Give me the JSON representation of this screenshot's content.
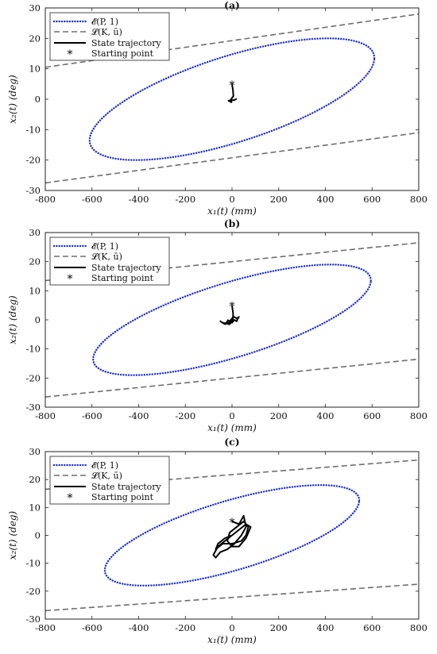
{
  "legend_labels": [
    "𝓔(P, 1)",
    "𝓛(K, ū)",
    "State trajectory",
    "Starting point"
  ],
  "xlabel": "x₁(t) (mm)",
  "ylabel": "x₂(t) (deg)",
  "colors": {
    "ellipse": "#1f2fd6",
    "line": "#6e6e6e",
    "trajectory": "#000000"
  },
  "chart_data": [
    {
      "type": "line",
      "title": "(a)",
      "xlabel": "x₁(t) (mm)",
      "ylabel": "x₂(t) (deg)",
      "xlim": [
        -800,
        800
      ],
      "ylim": [
        -30,
        30
      ],
      "xticks": [
        -800,
        -600,
        -400,
        -200,
        0,
        200,
        400,
        600,
        800
      ],
      "yticks": [
        -30,
        -20,
        -10,
        0,
        10,
        20,
        30
      ],
      "xtick_labels": [
        "-800",
        "-600",
        "-400",
        "-200",
        "0",
        "200",
        "400",
        "600",
        "800"
      ],
      "ytick_labels": [
        "-30",
        "-20",
        "-10",
        "0",
        "10",
        "20",
        "30"
      ],
      "grid": false,
      "legend_position": "top-left",
      "ellipse_extremes": {
        "rightmost": [
          610,
          13.5
        ],
        "leftmost": [
          -610,
          -13.5
        ],
        "top": [
          395,
          20
        ],
        "bottom": [
          -395,
          -20
        ]
      },
      "upper_line": {
        "x": [
          -800,
          800
        ],
        "y": [
          10.5,
          28
        ]
      },
      "lower_line": {
        "x": [
          -800,
          800
        ],
        "y": [
          -27.5,
          -11
        ]
      },
      "trajectory": {
        "x": [
          0,
          4,
          6,
          -4,
          -2,
          -15,
          -5,
          10,
          20
        ],
        "y": [
          5,
          3,
          1,
          0,
          -1,
          -0.5,
          -0.3,
          -0.3,
          0.2
        ]
      },
      "starting_point": [
        0,
        5
      ],
      "series": [
        {
          "name": "𝓔(P, 1)",
          "style": "dotted"
        },
        {
          "name": "𝓛(K, ū)",
          "style": "dashed"
        },
        {
          "name": "State trajectory",
          "style": "solid"
        },
        {
          "name": "Starting point",
          "marker": "*"
        }
      ]
    },
    {
      "type": "line",
      "title": "(b)",
      "xlabel": "x₁(t) (mm)",
      "ylabel": "x₂(t) (deg)",
      "xlim": [
        -800,
        800
      ],
      "ylim": [
        -30,
        30
      ],
      "xticks": [
        -800,
        -600,
        -400,
        -200,
        0,
        200,
        400,
        600,
        800
      ],
      "yticks": [
        -30,
        -20,
        -10,
        0,
        10,
        20,
        30
      ],
      "xtick_labels": [
        "-800",
        "-600",
        "-400",
        "-200",
        "0",
        "200",
        "400",
        "600",
        "800"
      ],
      "ytick_labels": [
        "-30",
        "-20",
        "-10",
        "0",
        "10",
        "20",
        "30"
      ],
      "grid": false,
      "legend_position": "top-left",
      "ellipse_extremes": {
        "rightmost": [
          595,
          13.5
        ],
        "leftmost": [
          -595,
          -13.5
        ],
        "top": [
          395,
          19
        ],
        "bottom": [
          -395,
          -19
        ]
      },
      "upper_line": {
        "x": [
          -800,
          800
        ],
        "y": [
          13.5,
          26.5
        ]
      },
      "lower_line": {
        "x": [
          -800,
          800
        ],
        "y": [
          -26.5,
          -13.5
        ]
      },
      "trajectory": {
        "x": [
          0,
          5,
          3,
          -10,
          -40,
          -50,
          -30,
          -20,
          -15,
          -5,
          0,
          10,
          20,
          25,
          30,
          20,
          10,
          0,
          -10,
          -20
        ],
        "y": [
          5,
          2,
          0,
          -1.5,
          -1,
          -0.5,
          -1.5,
          -0.5,
          -1.5,
          0,
          -1,
          0,
          -0.5,
          0.5,
          1,
          0.5,
          1,
          0.5,
          -0.5,
          0
        ]
      },
      "starting_point": [
        0,
        5
      ],
      "series": [
        {
          "name": "𝓔(P, 1)",
          "style": "dotted"
        },
        {
          "name": "𝓛(K, ū)",
          "style": "dashed"
        },
        {
          "name": "State trajectory",
          "style": "solid"
        },
        {
          "name": "Starting point",
          "marker": "*"
        }
      ]
    },
    {
      "type": "line",
      "title": "(c)",
      "xlabel": "x₁(t) (mm)",
      "ylabel": "x₂(t) (deg)",
      "xlim": [
        -800,
        800
      ],
      "ylim": [
        -30,
        30
      ],
      "xticks": [
        -800,
        -600,
        -400,
        -200,
        0,
        200,
        400,
        600,
        800
      ],
      "yticks": [
        -30,
        -20,
        -10,
        0,
        10,
        20,
        30
      ],
      "xtick_labels": [
        "-800",
        "-600",
        "-400",
        "-200",
        "0",
        "200",
        "400",
        "600",
        "800"
      ],
      "ytick_labels": [
        "-30",
        "-20",
        "-10",
        "0",
        "10",
        "20",
        "30"
      ],
      "grid": false,
      "legend_position": "top-left",
      "ellipse_extremes": {
        "rightmost": [
          545,
          12.5
        ],
        "leftmost": [
          -545,
          -12.5
        ],
        "top": [
          360,
          18
        ],
        "bottom": [
          -360,
          -18
        ]
      },
      "upper_line": {
        "x": [
          -800,
          800
        ],
        "y": [
          16.5,
          27
        ]
      },
      "lower_line": {
        "x": [
          -800,
          800
        ],
        "y": [
          -27,
          -17.5
        ]
      },
      "trajectory": {
        "x": [
          0,
          30,
          50,
          60,
          40,
          10,
          -20,
          -50,
          -70,
          -80,
          -60,
          -30,
          0,
          30,
          60,
          80,
          60,
          30,
          0,
          -20,
          -10,
          20,
          50,
          70,
          60,
          40,
          0,
          -40,
          -70,
          -60,
          -30,
          0
        ],
        "y": [
          5,
          4,
          7,
          3,
          0,
          -3,
          -5,
          -6,
          -8,
          -7,
          -4,
          -2,
          0,
          2,
          4,
          3,
          -1,
          -4,
          -4,
          -2,
          1,
          3,
          5,
          3,
          0,
          -2,
          -3,
          -3,
          -5,
          -3,
          -1,
          0
        ]
      },
      "starting_point": [
        0,
        5
      ],
      "series": [
        {
          "name": "𝓔(P, 1)",
          "style": "dotted"
        },
        {
          "name": "𝓛(K, ū)",
          "style": "dashed"
        },
        {
          "name": "State trajectory",
          "style": "solid"
        },
        {
          "name": "Starting point",
          "marker": "*"
        }
      ]
    }
  ]
}
